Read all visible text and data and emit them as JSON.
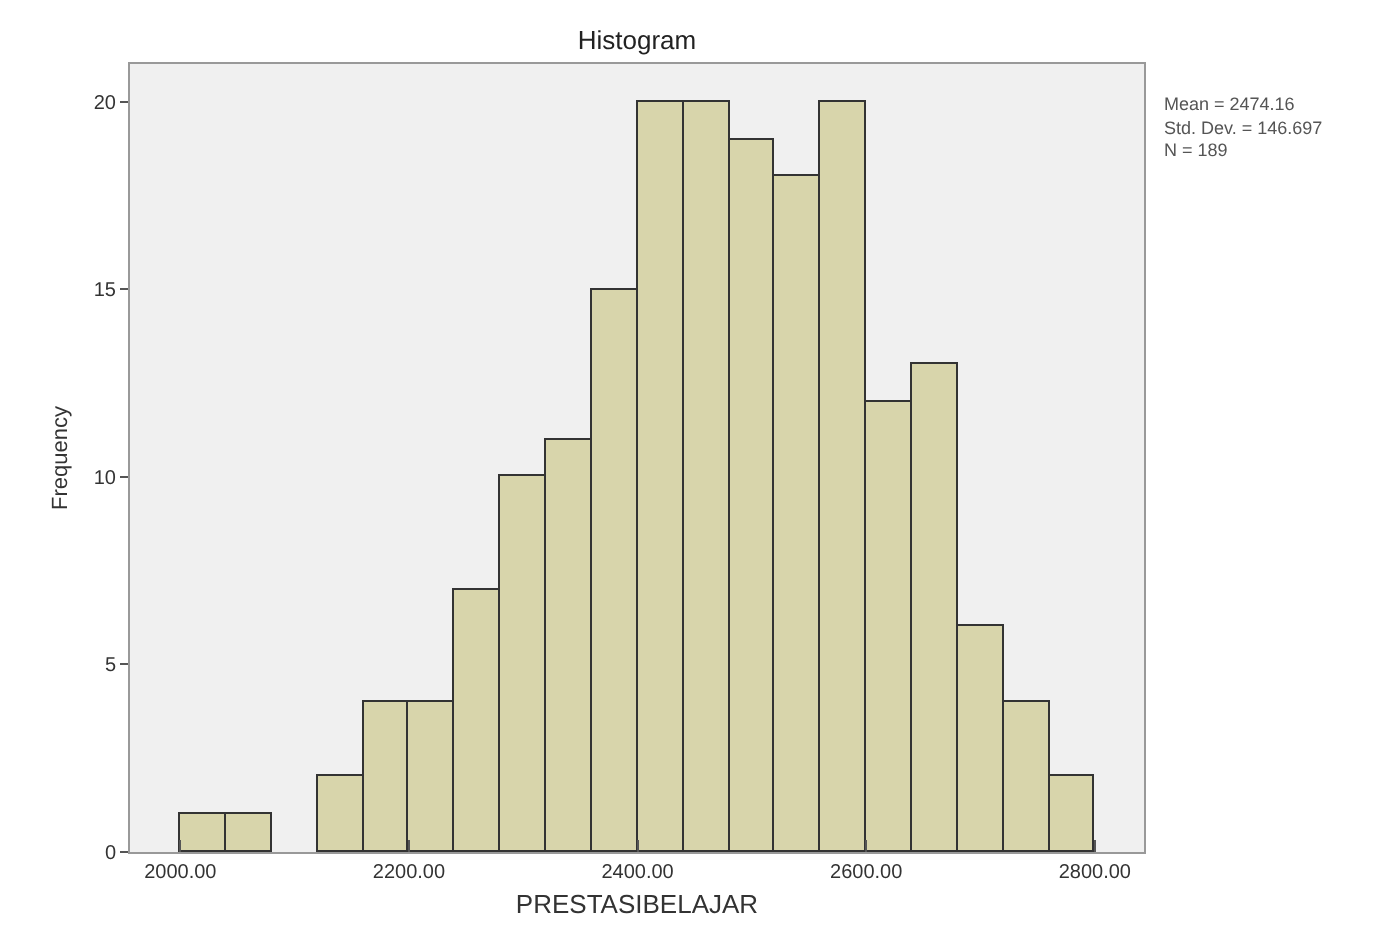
{
  "chart_data": {
    "type": "histogram",
    "title": "Histogram",
    "xlabel": "PRESTASIBELAJAR",
    "ylabel": "Frequency",
    "bins": [
      2000,
      2040,
      2080,
      2120,
      2160,
      2200,
      2240,
      2280,
      2320,
      2360,
      2400,
      2440,
      2480,
      2520,
      2560,
      2600,
      2640,
      2680,
      2720,
      2760,
      2800
    ],
    "values": [
      1,
      1,
      0,
      2,
      4,
      4,
      7,
      10,
      11,
      15,
      20,
      20,
      19,
      18,
      20,
      12,
      13,
      6,
      4,
      2
    ],
    "color": "#d8d5ab",
    "xlim": [
      1956,
      2843
    ],
    "xticks": [
      {
        "value": 2000,
        "label": "2000.00"
      },
      {
        "value": 2200,
        "label": "2200.00"
      },
      {
        "value": 2400,
        "label": "2400.00"
      },
      {
        "value": 2600,
        "label": "2600.00"
      },
      {
        "value": 2800,
        "label": "2800.00"
      }
    ],
    "ylim": [
      0,
      21
    ],
    "yticks": [
      0,
      5,
      10,
      15,
      20
    ],
    "annotations": [
      "Mean = 2474.16",
      "Std. Dev. = 146.697",
      "N = 189"
    ],
    "grid": false
  }
}
